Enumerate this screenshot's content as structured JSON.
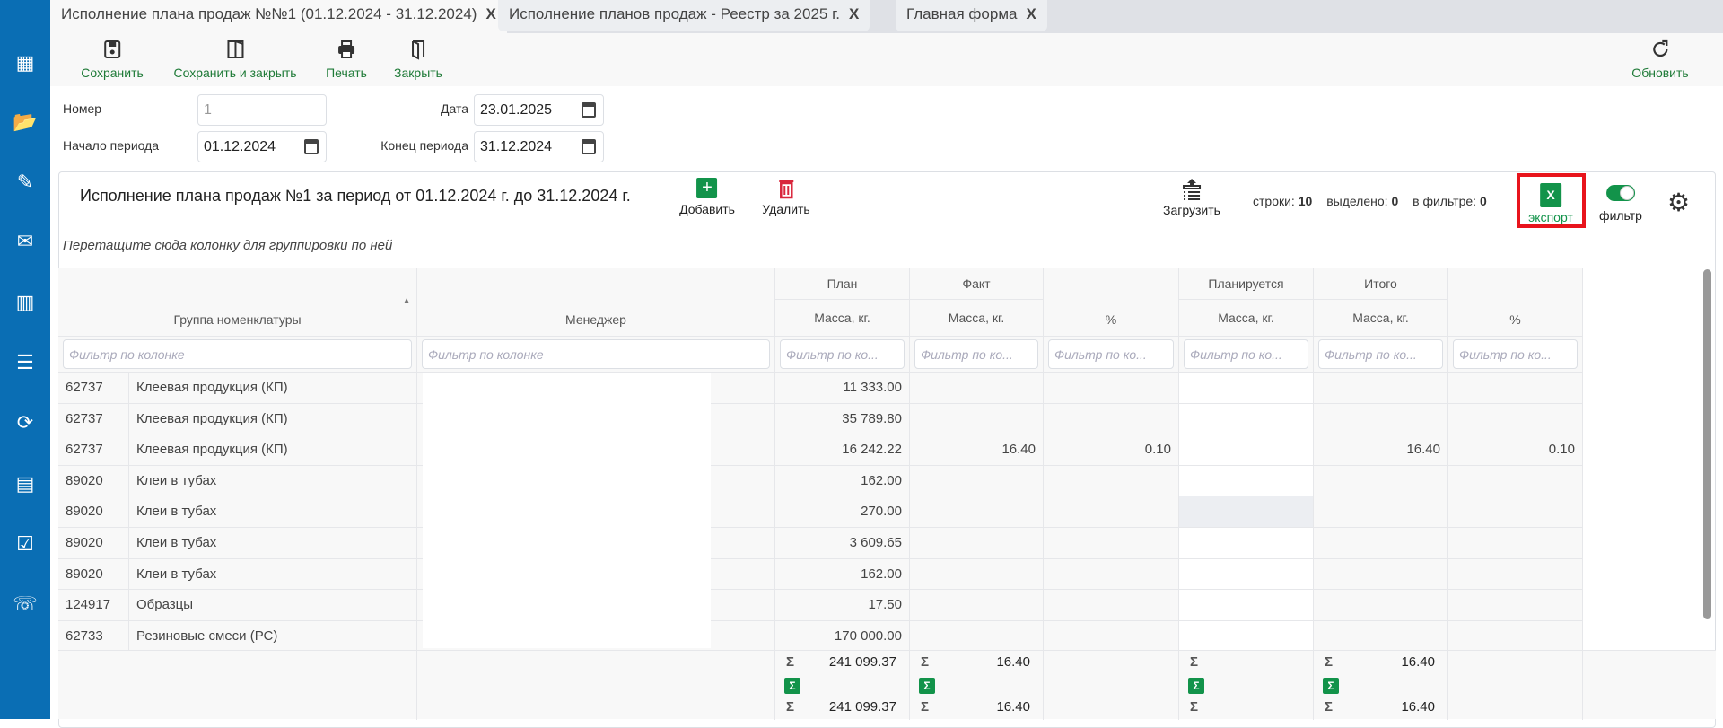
{
  "tabs": [
    {
      "label": "Исполнение плана продаж №№1 (01.12.2024 - 31.12.2024)",
      "close": "X"
    },
    {
      "label": "Исполнение планов продаж - Реестр за 2025 г.",
      "close": "X"
    },
    {
      "label": "Главная форма",
      "close": "X"
    }
  ],
  "sidebar": [
    "qr-code-icon",
    "folder-open-icon",
    "pencil-icon",
    "envelope-icon",
    "bar-chart-icon",
    "list-download-icon",
    "sync-icon",
    "table-clock-icon",
    "list-check-icon",
    "phone-slash-icon"
  ],
  "toolbar": {
    "save": "Сохранить",
    "save_close": "Сохранить и закрыть",
    "print": "Печать",
    "close": "Закрыть",
    "refresh": "Обновить"
  },
  "form": {
    "number_label": "Номер",
    "number_value": "1",
    "date_label": "Дата",
    "date_value": "23.01.2025",
    "start_label": "Начало периода",
    "start_value": "01.12.2024",
    "end_label": "Конец периода",
    "end_value": "31.12.2024"
  },
  "panel": {
    "title": "Исполнение плана продаж №1 за период от 01.12.2024 г. до 31.12.2024 г.",
    "add": "Добавить",
    "delete": "Удалить",
    "load": "Загрузить",
    "rows_label": "строки:",
    "rows_count": "10",
    "selected_label": "выделено:",
    "selected_count": "0",
    "filtered_label": "в фильтре:",
    "filtered_count": "0",
    "export": "экспорт",
    "export_icon": "X",
    "filter": "фильтр",
    "group_hint": "Перетащите сюда колонку для группировки по ней"
  },
  "colors": {
    "sidebar": "#0a6eb4",
    "accent_green": "#1e7a37",
    "excel_green": "#12934a",
    "delete_red": "#d9263c",
    "highlight_red": "#e8141c"
  },
  "table": {
    "headers": {
      "group": "Группа номенклатуры",
      "manager": "Менеджер",
      "plan": "План",
      "fact": "Факт",
      "planned": "Планируется",
      "total": "Итого",
      "mass": "Масса, кг.",
      "pct": "%"
    },
    "filter_placeholder": "Фильтр по колонке",
    "filter_placeholder_short": "Фильтр по ко...",
    "rows": [
      [
        "62737",
        "Клеевая продукция (КП)",
        "",
        "11 333.00",
        "",
        "",
        "",
        "",
        ""
      ],
      [
        "62737",
        "Клеевая продукция (КП)",
        "",
        "35 789.80",
        "",
        "",
        "",
        "",
        ""
      ],
      [
        "62737",
        "Клеевая продукция (КП)",
        "",
        "16 242.22",
        "16.40",
        "0.10",
        "",
        "16.40",
        "0.10"
      ],
      [
        "89020",
        "Клеи в тубах",
        "",
        "162.00",
        "",
        "",
        "",
        "",
        ""
      ],
      [
        "89020",
        "Клеи в тубах",
        "",
        "270.00",
        "",
        "",
        "",
        "",
        ""
      ],
      [
        "89020",
        "Клеи в тубах",
        "",
        "3 609.65",
        "",
        "",
        "",
        "",
        ""
      ],
      [
        "89020",
        "Клеи в тубах",
        "",
        "162.00",
        "",
        "",
        "",
        "",
        ""
      ],
      [
        "124917",
        "Образцы",
        "",
        "17.50",
        "",
        "",
        "",
        "",
        ""
      ],
      [
        "62733",
        "Резиновые смеси (РС)",
        "",
        "170 000.00",
        "",
        "",
        "",
        "",
        ""
      ]
    ],
    "totals": {
      "sigma": "Σ",
      "plan_sum": "241 099.37",
      "plan_filtered": "241 099.37",
      "fact_sum": "16.40",
      "fact_filtered": "16.40",
      "total_sum": "16.40",
      "total_filtered": "16.40"
    }
  }
}
